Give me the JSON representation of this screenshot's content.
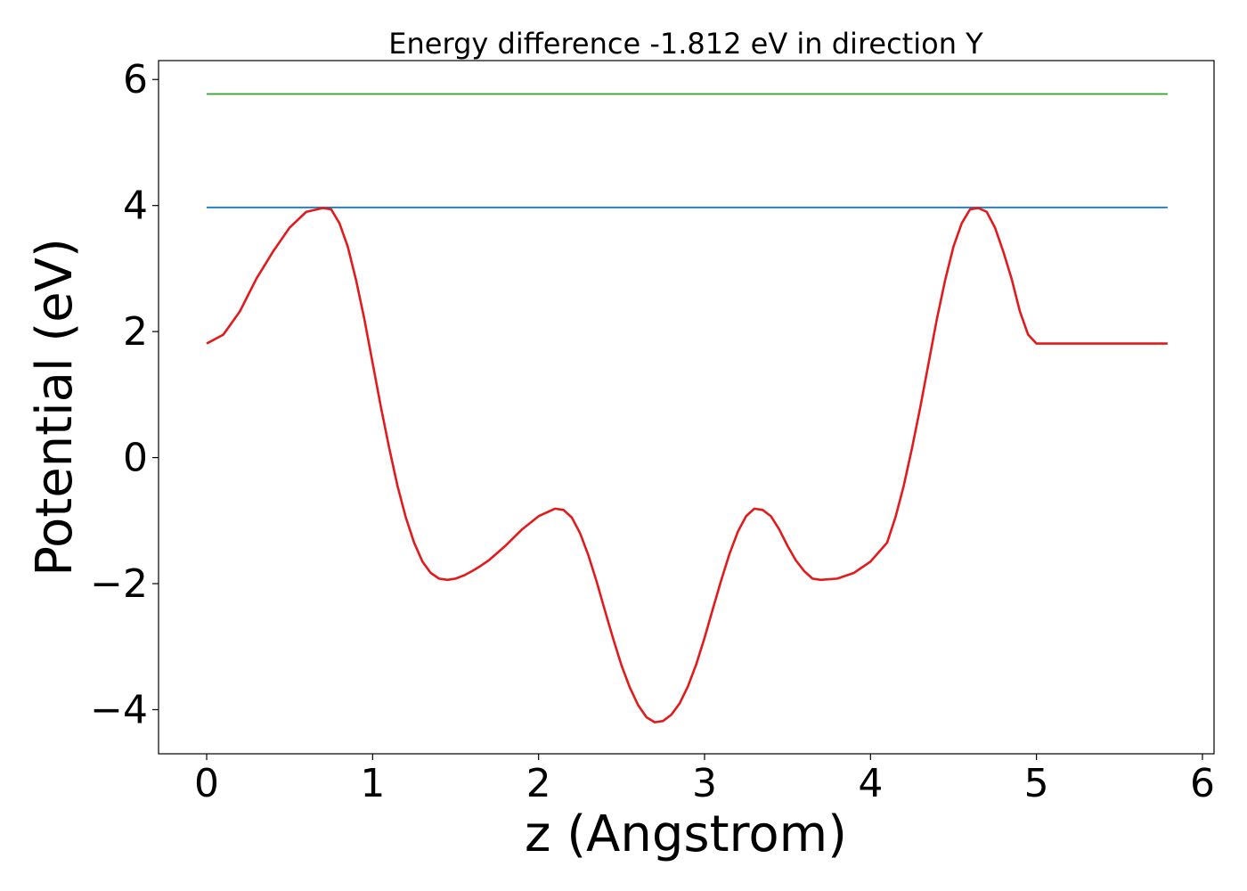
{
  "chart_data": {
    "type": "line",
    "title": "Energy difference -1.812 eV in direction Y",
    "xlabel": "z (Angstrom)",
    "ylabel": "Potential (eV)",
    "xlim": [
      -0.29,
      6.07
    ],
    "ylim": [
      -4.7,
      6.3
    ],
    "xticks": [
      0,
      1,
      2,
      3,
      4,
      5,
      6
    ],
    "yticks": [
      -4,
      -2,
      0,
      2,
      4,
      6
    ],
    "xtick_labels": [
      "0",
      "1",
      "2",
      "3",
      "4",
      "5",
      "6"
    ],
    "ytick_labels": [
      "−4",
      "−2",
      "0",
      "2",
      "4",
      "6"
    ],
    "grid": false,
    "series": [
      {
        "color": "#2ca02c",
        "x": [
          0,
          5.79
        ],
        "y": [
          5.77,
          5.77
        ]
      },
      {
        "color": "#1f77b4",
        "x": [
          0,
          5.79
        ],
        "y": [
          3.97,
          3.97
        ]
      },
      {
        "color": "#e31a1c",
        "x": [
          0.0,
          0.1,
          0.2,
          0.3,
          0.4,
          0.5,
          0.6,
          0.7,
          0.75,
          0.8,
          0.85,
          0.9,
          0.95,
          1.0,
          1.05,
          1.1,
          1.15,
          1.2,
          1.25,
          1.3,
          1.35,
          1.4,
          1.45,
          1.5,
          1.55,
          1.6,
          1.65,
          1.7,
          1.8,
          1.9,
          2.0,
          2.1,
          2.15,
          2.2,
          2.25,
          2.3,
          2.35,
          2.4,
          2.45,
          2.5,
          2.55,
          2.6,
          2.65,
          2.7,
          2.75,
          2.8,
          2.85,
          2.9,
          2.95,
          3.0,
          3.05,
          3.1,
          3.15,
          3.2,
          3.25,
          3.3,
          3.35,
          3.4,
          3.45,
          3.5,
          3.55,
          3.6,
          3.65,
          3.7,
          3.8,
          3.9,
          4.0,
          4.1,
          4.15,
          4.2,
          4.25,
          4.3,
          4.35,
          4.4,
          4.45,
          4.5,
          4.55,
          4.6,
          4.65,
          4.7,
          4.75,
          4.8,
          4.85,
          4.9,
          4.95,
          5.0,
          5.05,
          5.1,
          5.15,
          5.2,
          5.3,
          5.4,
          5.5,
          5.6,
          5.7,
          5.79
        ],
        "y": [
          1.81,
          1.95,
          2.32,
          2.84,
          3.27,
          3.65,
          3.9,
          3.96,
          3.94,
          3.72,
          3.35,
          2.82,
          2.2,
          1.5,
          0.8,
          0.15,
          -0.45,
          -0.95,
          -1.35,
          -1.65,
          -1.83,
          -1.92,
          -1.94,
          -1.92,
          -1.87,
          -1.8,
          -1.72,
          -1.63,
          -1.4,
          -1.14,
          -0.93,
          -0.81,
          -0.83,
          -0.95,
          -1.2,
          -1.55,
          -1.97,
          -2.43,
          -2.88,
          -3.3,
          -3.65,
          -3.93,
          -4.12,
          -4.2,
          -4.18,
          -4.08,
          -3.9,
          -3.63,
          -3.28,
          -2.86,
          -2.4,
          -1.95,
          -1.53,
          -1.18,
          -0.93,
          -0.81,
          -0.83,
          -0.93,
          -1.14,
          -1.4,
          -1.63,
          -1.8,
          -1.92,
          -1.94,
          -1.92,
          -1.83,
          -1.65,
          -1.35,
          -0.95,
          -0.45,
          0.15,
          0.8,
          1.5,
          2.2,
          2.82,
          3.35,
          3.72,
          3.94,
          3.96,
          3.9,
          3.65,
          3.27,
          2.84,
          2.32,
          1.95,
          1.81,
          1.81,
          1.81,
          1.81,
          1.81,
          1.81,
          1.81,
          1.81,
          1.81,
          1.81,
          1.81
        ]
      }
    ]
  }
}
